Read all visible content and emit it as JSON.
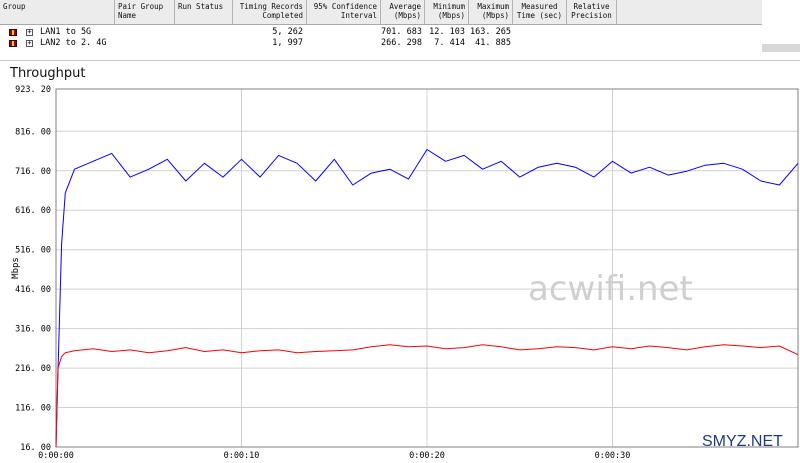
{
  "table": {
    "headers": [
      "Group",
      "Pair Group\nName",
      "Run Status",
      "Timing Records\nCompleted",
      "95% Confidence\nInterval",
      "Average\n(Mbps)",
      "Minimum\n(Mbps)",
      "Maximum\n(Mbps)",
      "Measured\nTime (sec)",
      "Relative\nPrecision"
    ],
    "rows": [
      {
        "group": "LAN1 to 5G",
        "records": "5, 262",
        "average": "701. 683",
        "minimum": "12. 103",
        "maximum": "163. 265"
      },
      {
        "group": "LAN2 to 2. 4G",
        "records": "1, 997",
        "average": "266. 298",
        "minimum": "7. 414",
        "maximum": "41. 885"
      }
    ]
  },
  "watermarks": {
    "main": "acwifi.net",
    "corner": "SMYZ.NET"
  },
  "chart_data": {
    "type": "line",
    "title": "Throughput",
    "ylabel": "Mbps",
    "xlabel": "",
    "ylim": [
      16.0,
      923.2
    ],
    "xlim": [
      0,
      40
    ],
    "y_ticks": [
      "923. 20",
      "816. 00",
      "716. 00",
      "616. 00",
      "516. 00",
      "416. 00",
      "316. 00",
      "216. 00",
      "116. 00",
      "16. 00"
    ],
    "y_tick_values": [
      923.2,
      816,
      716,
      616,
      516,
      416,
      316,
      216,
      116,
      16
    ],
    "x_ticks": [
      "0:00:00",
      "0:00:10",
      "0:00:20",
      "0:00:30"
    ],
    "x_tick_values": [
      0,
      10,
      20,
      30
    ],
    "grid": true,
    "series": [
      {
        "name": "LAN1 to 5G",
        "color": "#0000ff",
        "x": [
          0,
          0.1,
          0.3,
          0.5,
          1,
          2,
          3,
          4,
          5,
          6,
          7,
          8,
          9,
          10,
          11,
          12,
          13,
          14,
          15,
          16,
          17,
          18,
          19,
          20,
          21,
          22,
          23,
          24,
          25,
          26,
          27,
          28,
          29,
          30,
          31,
          32,
          33,
          34,
          35,
          36,
          37,
          38,
          39,
          40
        ],
        "values": [
          16,
          200,
          530,
          660,
          720,
          740,
          760,
          700,
          720,
          745,
          690,
          735,
          700,
          745,
          700,
          755,
          735,
          690,
          745,
          680,
          710,
          720,
          695,
          770,
          740,
          755,
          720,
          740,
          700,
          725,
          735,
          725,
          700,
          740,
          710,
          725,
          705,
          715,
          730,
          735,
          720,
          690,
          680,
          735
        ]
      },
      {
        "name": "LAN2 to 2. 4G",
        "color": "#ff0000",
        "x": [
          0,
          0.1,
          0.3,
          0.5,
          1,
          2,
          3,
          4,
          5,
          6,
          7,
          8,
          9,
          10,
          11,
          12,
          13,
          14,
          15,
          16,
          17,
          18,
          19,
          20,
          21,
          22,
          23,
          24,
          25,
          26,
          27,
          28,
          29,
          30,
          31,
          32,
          33,
          34,
          35,
          36,
          37,
          38,
          39,
          40
        ],
        "values": [
          16,
          215,
          245,
          255,
          260,
          265,
          258,
          262,
          255,
          260,
          268,
          258,
          262,
          255,
          260,
          262,
          255,
          258,
          260,
          262,
          270,
          275,
          270,
          272,
          265,
          268,
          275,
          270,
          262,
          265,
          270,
          268,
          262,
          270,
          265,
          272,
          268,
          262,
          270,
          275,
          272,
          268,
          272,
          250
        ]
      }
    ]
  }
}
